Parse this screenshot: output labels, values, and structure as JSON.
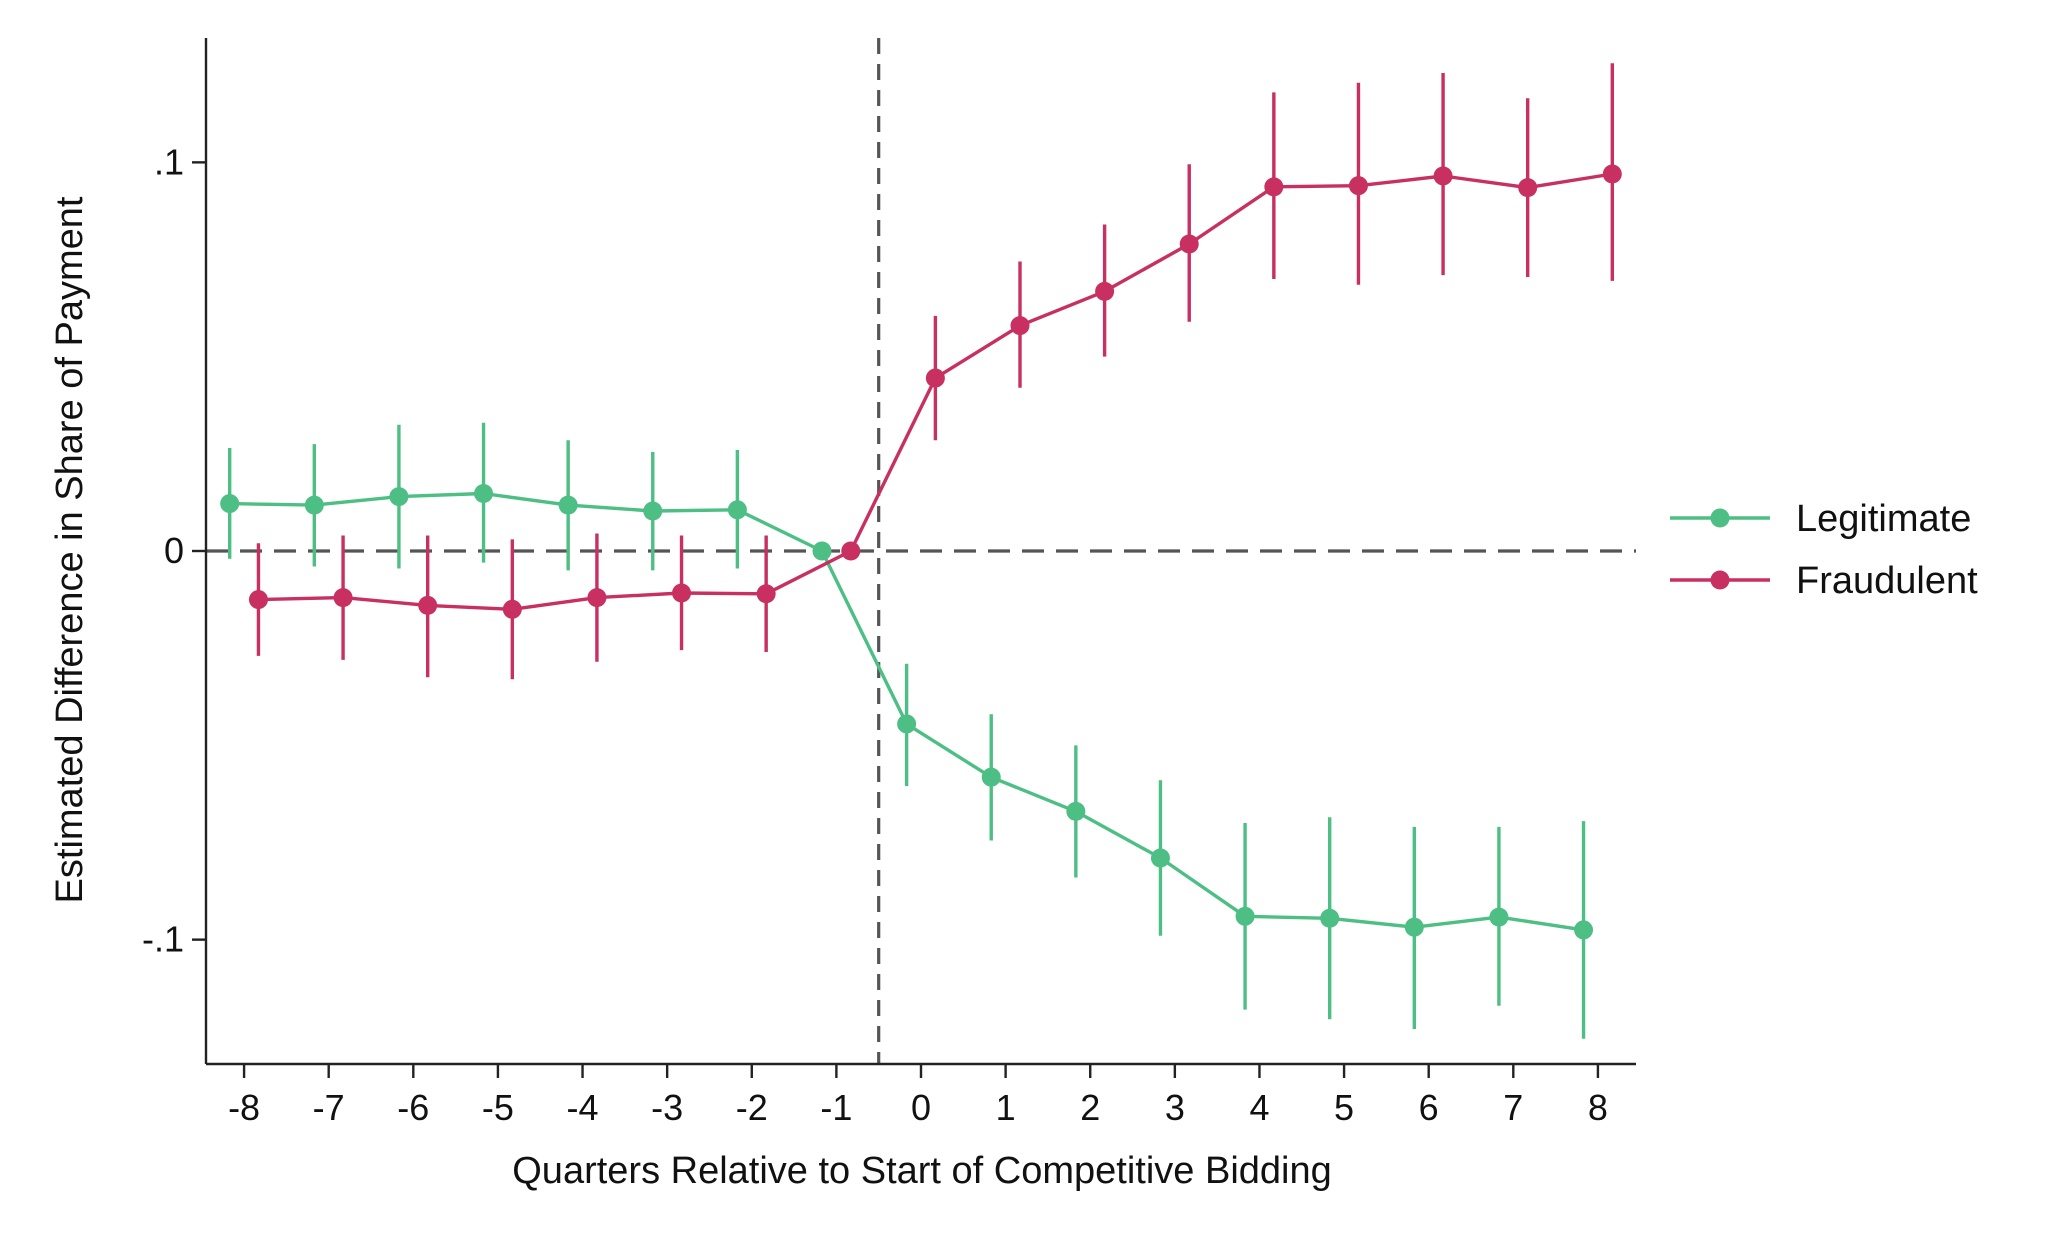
{
  "chart_data": {
    "type": "line",
    "title": "",
    "xlabel": "Quarters Relative to Start of Competitive Bidding",
    "ylabel": "Estimated Difference in Share of Payment",
    "x_ticks": [
      -8,
      -7,
      -6,
      -5,
      -4,
      -3,
      -2,
      -1,
      0,
      1,
      2,
      3,
      4,
      5,
      6,
      7,
      8
    ],
    "x_tick_labels": [
      "-8",
      "-7",
      "-6",
      "-5",
      "-4",
      "-3",
      "-2",
      "-1",
      "0",
      "1",
      "2",
      "3",
      "4",
      "5",
      "6",
      "7",
      "8"
    ],
    "y_ticks": [
      -0.1,
      0,
      0.1
    ],
    "y_tick_labels": [
      "-.1",
      "0",
      ".1"
    ],
    "xlim": [
      -8.45,
      8.45
    ],
    "ylim": [
      -0.132,
      0.132
    ],
    "reference_lines": {
      "horizontal_y": 0,
      "vertical_x": -0.5,
      "style": "dashed",
      "color": "#555555"
    },
    "legend": {
      "position": "right"
    },
    "grid": false,
    "series": [
      {
        "name": "Legitimate",
        "color": "#4dbf84",
        "x": [
          -8.17,
          -7.17,
          -6.17,
          -5.17,
          -4.17,
          -3.17,
          -2.17,
          -1.17,
          -0.17,
          0.83,
          1.83,
          2.83,
          3.83,
          4.83,
          5.83,
          6.83,
          7.83
        ],
        "values": [
          0.0122,
          0.0118,
          0.014,
          0.0148,
          0.0118,
          0.0103,
          0.0106,
          0.0,
          -0.0445,
          -0.0582,
          -0.067,
          -0.079,
          -0.094,
          -0.0945,
          -0.0968,
          -0.0942,
          -0.0975
        ],
        "ci_lower": [
          -0.002,
          -0.004,
          -0.0045,
          -0.003,
          -0.005,
          -0.005,
          -0.0045,
          0.0,
          -0.0605,
          -0.0745,
          -0.084,
          -0.099,
          -0.118,
          -0.1205,
          -0.123,
          -0.117,
          -0.1255
        ],
        "ci_upper": [
          0.0265,
          0.0275,
          0.0325,
          0.033,
          0.0285,
          0.0255,
          0.026,
          0.0,
          -0.029,
          -0.042,
          -0.05,
          -0.059,
          -0.07,
          -0.0685,
          -0.071,
          -0.071,
          -0.0695
        ]
      },
      {
        "name": "Fraudulent",
        "color": "#c73060",
        "x": [
          -7.83,
          -6.83,
          -5.83,
          -4.83,
          -3.83,
          -2.83,
          -1.83,
          -0.83,
          0.17,
          1.17,
          2.17,
          3.17,
          4.17,
          5.17,
          6.17,
          7.17,
          8.17
        ],
        "values": [
          -0.0125,
          -0.012,
          -0.014,
          -0.015,
          -0.012,
          -0.0108,
          -0.011,
          0.0,
          0.0445,
          0.058,
          0.0668,
          0.079,
          0.0937,
          0.094,
          0.0965,
          0.0935,
          0.097
        ],
        "ci_lower": [
          -0.027,
          -0.028,
          -0.0325,
          -0.033,
          -0.0285,
          -0.0255,
          -0.026,
          0.0,
          0.0285,
          0.042,
          0.05,
          0.059,
          0.07,
          0.0685,
          0.071,
          0.0705,
          0.0695
        ],
        "ci_upper": [
          0.002,
          0.004,
          0.004,
          0.003,
          0.0045,
          0.004,
          0.004,
          0.0,
          0.0605,
          0.0745,
          0.084,
          0.0995,
          0.118,
          0.1205,
          0.123,
          0.1165,
          0.1255
        ]
      }
    ]
  }
}
